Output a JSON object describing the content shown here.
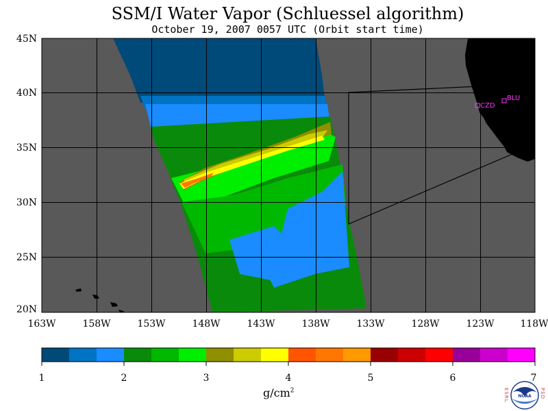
{
  "title": "SSM/I Water Vapor (Schluessel algorithm)",
  "subtitle": "October 19, 2007  0057 UTC  (Orbit start time)",
  "map": {
    "lat_labels": [
      "45N",
      "40N",
      "35N",
      "30N",
      "25N",
      "20N"
    ],
    "lon_labels": [
      "163W",
      "158W",
      "153W",
      "148W",
      "143W",
      "138W",
      "133W",
      "128W",
      "123W",
      "118W"
    ],
    "colors": {
      "land": "#000000",
      "no_data": "#595959",
      "grid": "#000000",
      "marker": "#ff33ff",
      "high_band_edge": "#ff2200"
    },
    "stations": [
      {
        "label": "CZD"
      },
      {
        "label": "BLU"
      }
    ]
  },
  "colorbar": {
    "tick_labels": [
      "1",
      "2",
      "3",
      "4",
      "5",
      "6",
      "7"
    ],
    "units": "g/cm",
    "units_exp": "2",
    "colors": [
      "#004a7a",
      "#0073c2",
      "#1a8cff",
      "#0a8a0a",
      "#00b800",
      "#00ee00",
      "#8f8f00",
      "#cccc00",
      "#ffff00",
      "#ff5500",
      "#ff7700",
      "#ff9900",
      "#990000",
      "#cc0000",
      "#ff0000",
      "#990099",
      "#cc00cc",
      "#ff00ff"
    ]
  },
  "logo": {
    "left_text": "ESRL",
    "right_text": "PSD",
    "badge": "NOAA"
  }
}
